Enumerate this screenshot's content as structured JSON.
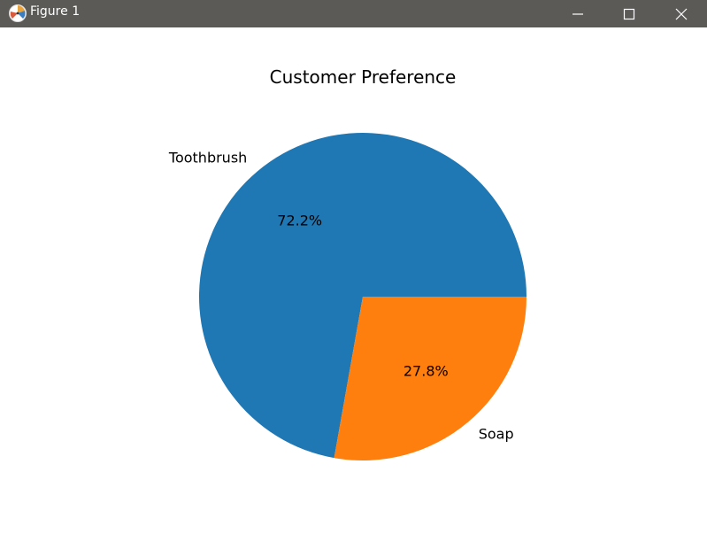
{
  "window": {
    "title": "Figure 1",
    "buttons": {
      "minimize": "minimize-icon",
      "maximize": "maximize-icon",
      "close": "close-icon"
    },
    "titlebar_color": "#5c5a57"
  },
  "chart_data": {
    "type": "pie",
    "title": "Customer Preference",
    "slices": [
      {
        "label": "Toothbrush",
        "value": 72.2,
        "pct_label": "72.2%",
        "color": "#1f77b4"
      },
      {
        "label": "Soap",
        "value": 27.8,
        "pct_label": "27.8%",
        "color": "#ff7f0e"
      }
    ],
    "start_angle_deg": 0,
    "direction": "counterclockwise"
  }
}
